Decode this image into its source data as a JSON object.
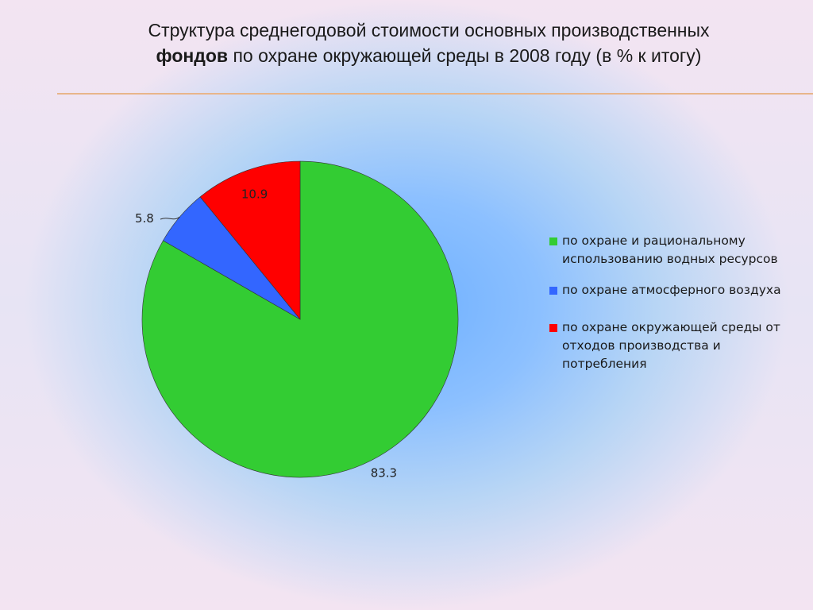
{
  "title": {
    "line1": "Структура среднегодовой стоимости основных производственных",
    "line2_bold": "фондов",
    "line2_rest": " по охране окружающей среды в 2008 году (в % к итогу)"
  },
  "colors": {
    "green": "#33cc33",
    "blue": "#3366ff",
    "red": "#ff0000",
    "rule": "#e8b58a"
  },
  "chart_data": {
    "type": "pie",
    "series": [
      {
        "name": "по охране и рациональному использованию водных ресурсов",
        "value": 83.3,
        "label": "83.3",
        "color": "#33cc33"
      },
      {
        "name": "по охране атмосферного воздуха",
        "value": 5.8,
        "label": "5.8",
        "color": "#3366ff"
      },
      {
        "name": "по охране окружающей среды от отходов производства и потребления",
        "value": 10.9,
        "label": "10.9",
        "color": "#ff0000"
      }
    ],
    "start_angle": "12 o'clock",
    "direction": "clockwise",
    "legend_position": "right"
  }
}
